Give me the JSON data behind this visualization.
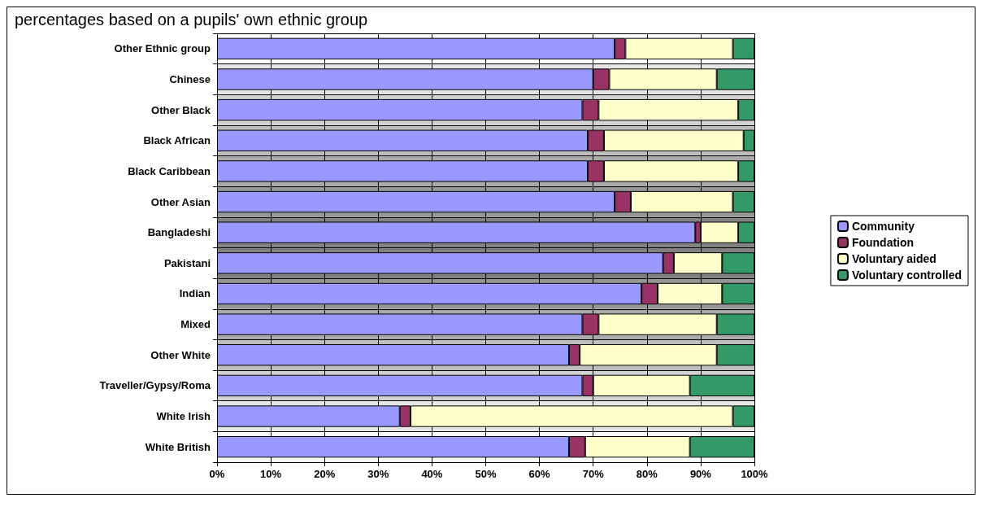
{
  "chart_data": {
    "type": "bar",
    "orientation": "horizontal",
    "stacked": true,
    "title": "percentages based on a pupils' own ethnic group",
    "categories": [
      "Other Ethnic group",
      "Chinese",
      "Other Black",
      "Black African",
      "Black Caribbean",
      "Other Asian",
      "Bangladeshi",
      "Pakistani",
      "Indian",
      "Mixed",
      "Other White",
      "Traveller/Gypsy/Roma",
      "White Irish",
      "White British"
    ],
    "series": [
      {
        "name": "Community",
        "color": "#9999ff",
        "values": [
          74,
          70,
          68,
          69,
          69,
          74,
          89,
          83,
          79,
          68,
          65.5,
          68,
          34,
          65.5
        ]
      },
      {
        "name": "Foundation",
        "color": "#993366",
        "values": [
          2,
          3,
          3,
          3,
          3,
          3,
          1,
          2,
          3,
          3,
          2,
          2,
          2,
          3
        ]
      },
      {
        "name": "Voluntary aided",
        "color": "#ffffcc",
        "values": [
          20,
          20,
          26,
          26,
          25,
          19,
          7,
          9,
          12,
          22,
          25.5,
          18,
          60,
          19.5
        ]
      },
      {
        "name": "Voluntary controlled",
        "color": "#339966",
        "values": [
          4,
          7,
          3,
          2,
          3,
          4,
          3,
          6,
          6,
          7,
          7,
          12,
          4,
          12
        ]
      }
    ],
    "xlim": [
      0,
      100
    ],
    "xticks": [
      {
        "value": 0,
        "label": "0%"
      },
      {
        "value": 10,
        "label": "10%"
      },
      {
        "value": 20,
        "label": "20%"
      },
      {
        "value": 30,
        "label": "30%"
      },
      {
        "value": 40,
        "label": "40%"
      },
      {
        "value": 50,
        "label": "50%"
      },
      {
        "value": 60,
        "label": "60%"
      },
      {
        "value": 70,
        "label": "70%"
      },
      {
        "value": 80,
        "label": "80%"
      },
      {
        "value": 90,
        "label": "90%"
      },
      {
        "value": 100,
        "label": "100%"
      }
    ],
    "grid": true,
    "legend": "right"
  }
}
